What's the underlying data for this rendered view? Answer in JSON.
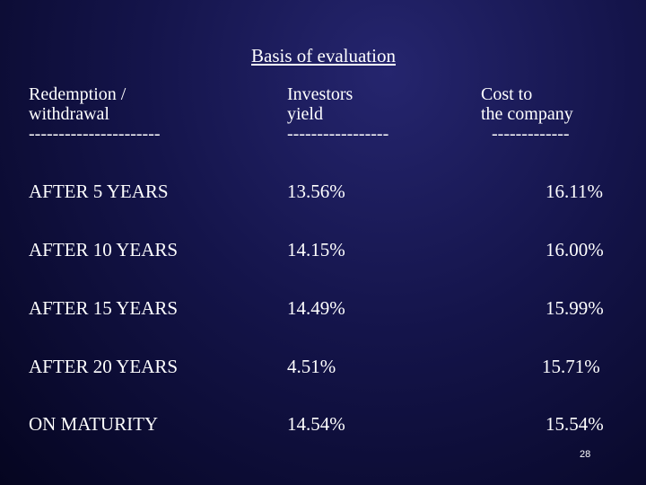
{
  "slide": {
    "title": "Basis of evaluation",
    "headers": [
      {
        "line1": "Redemption /",
        "line2": "withdrawal",
        "dashes": "----------------------"
      },
      {
        "line1": "Investors",
        "line2": "yield",
        "dashes": "-----------------"
      },
      {
        "line1": "Cost to",
        "line2": "the company",
        "dashes": "-------------"
      }
    ],
    "rows": [
      {
        "label": "AFTER  5 YEARS",
        "yield": "13.56%",
        "cost": "16.11%"
      },
      {
        "label": "AFTER 10 YEARS",
        "yield": "14.15%",
        "cost": "16.00%"
      },
      {
        "label": "AFTER 15 YEARS",
        "yield": "14.49%",
        "cost": "15.99%"
      },
      {
        "label": "AFTER 20 YEARS",
        "yield": "4.51%",
        "cost": "15.71%"
      },
      {
        "label": "ON MATURITY",
        "yield": "14.54%",
        "cost": "15.54%"
      }
    ],
    "page_number": "28",
    "colors": {
      "background": "#14144a",
      "text": "#ffffff"
    }
  }
}
